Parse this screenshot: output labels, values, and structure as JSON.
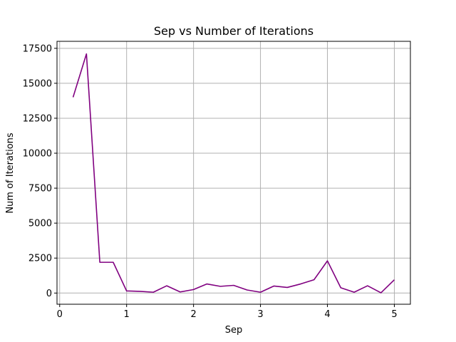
{
  "chart_data": {
    "type": "line",
    "title": "Sep vs Number of Iterations",
    "xlabel": "Sep",
    "ylabel": "Num of Iterations",
    "xlim": [
      -0.04,
      5.24
    ],
    "ylim": [
      -800,
      18000
    ],
    "xticks": [
      0,
      1,
      2,
      3,
      4,
      5
    ],
    "yticks": [
      0,
      2500,
      5000,
      7500,
      10000,
      12500,
      15000,
      17500
    ],
    "grid": true,
    "series": [
      {
        "name": "iterations",
        "color": "#800080",
        "x": [
          0.2,
          0.4,
          0.6,
          0.8,
          1.0,
          1.2,
          1.4,
          1.6,
          1.8,
          2.0,
          2.2,
          2.4,
          2.6,
          2.8,
          3.0,
          3.2,
          3.4,
          3.6,
          3.8,
          4.0,
          4.2,
          4.4,
          4.6,
          4.8,
          5.0
        ],
        "y": [
          14000,
          17100,
          2200,
          2200,
          150,
          120,
          60,
          520,
          80,
          250,
          650,
          480,
          550,
          220,
          60,
          500,
          400,
          650,
          950,
          2300,
          380,
          60,
          520,
          20,
          950
        ]
      }
    ]
  }
}
